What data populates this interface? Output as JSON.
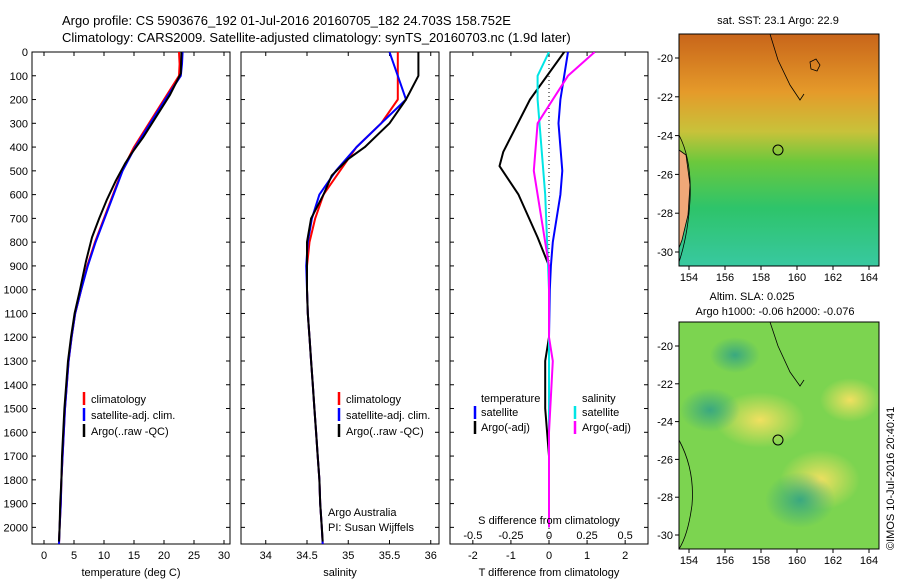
{
  "header": {
    "line1": "Argo profile: CS 5903676_192 01-Jul-2016 20160705_182 24.703S 158.752E",
    "line2": "Climatology: CARS2009. Satellite-adjusted climatology: synTS_20160703.nc (1.9d later)"
  },
  "colors": {
    "climatology": "#ff0000",
    "satellite": "#0000ff",
    "argo": "#000000",
    "sat_salinity": "#00e5e5",
    "argo_salinity": "#ff00ff"
  },
  "chart_data": [
    {
      "type": "line",
      "xlabel": "temperature (deg C)",
      "ylabel": "",
      "xlim": [
        -2,
        31
      ],
      "ylim": [
        2070,
        0
      ],
      "x_ticks": [
        0,
        5,
        10,
        15,
        20,
        25,
        30
      ],
      "y_ticks": [
        0,
        100,
        200,
        300,
        400,
        500,
        600,
        700,
        800,
        900,
        1000,
        1100,
        1200,
        1300,
        1400,
        1500,
        1600,
        1700,
        1800,
        1900,
        2000
      ],
      "legend": [
        "climatology",
        "satellite-adj. clim.",
        "Argo(..raw -QC)"
      ],
      "series": [
        {
          "name": "climatology",
          "color": "#ff0000",
          "points": [
            [
              22.5,
              0
            ],
            [
              22.6,
              50
            ],
            [
              22.5,
              100
            ],
            [
              20,
              200
            ],
            [
              17.5,
              300
            ],
            [
              15,
              400
            ],
            [
              13,
              500
            ],
            [
              11.5,
              600
            ],
            [
              10,
              700
            ],
            [
              8.5,
              800
            ],
            [
              7.2,
              900
            ],
            [
              6.2,
              1000
            ],
            [
              5.2,
              1100
            ],
            [
              4.6,
              1200
            ],
            [
              4.1,
              1300
            ],
            [
              3.8,
              1400
            ],
            [
              3.5,
              1500
            ],
            [
              3.3,
              1600
            ],
            [
              3.1,
              1700
            ],
            [
              2.9,
              1800
            ],
            [
              2.8,
              1900
            ],
            [
              2.6,
              2000
            ],
            [
              2.5,
              2070
            ]
          ]
        },
        {
          "name": "satellite-adj. clim.",
          "color": "#0000ff",
          "points": [
            [
              23.1,
              0
            ],
            [
              23.0,
              50
            ],
            [
              22.8,
              100
            ],
            [
              20.2,
              200
            ],
            [
              17.7,
              300
            ],
            [
              15.2,
              400
            ],
            [
              13.1,
              500
            ],
            [
              11.6,
              600
            ],
            [
              10.1,
              700
            ],
            [
              8.6,
              800
            ],
            [
              7.3,
              900
            ],
            [
              6.2,
              1000
            ],
            [
              5.2,
              1100
            ],
            [
              4.6,
              1200
            ],
            [
              4.1,
              1300
            ],
            [
              3.8,
              1400
            ],
            [
              3.5,
              1500
            ],
            [
              3.3,
              1600
            ],
            [
              3.1,
              1700
            ],
            [
              2.9,
              1800
            ],
            [
              2.8,
              1900
            ],
            [
              2.6,
              2000
            ],
            [
              2.5,
              2070
            ]
          ]
        },
        {
          "name": "Argo(..raw -QC)",
          "color": "#000000",
          "points": [
            [
              22.9,
              0
            ],
            [
              22.8,
              90
            ],
            [
              21,
              180
            ],
            [
              18.5,
              280
            ],
            [
              16.5,
              360
            ],
            [
              14.5,
              430
            ],
            [
              13.5,
              470
            ],
            [
              12,
              540
            ],
            [
              10.5,
              620
            ],
            [
              9.2,
              700
            ],
            [
              8,
              780
            ],
            [
              7,
              880
            ],
            [
              6,
              1000
            ],
            [
              5.1,
              1100
            ],
            [
              4.5,
              1200
            ],
            [
              4,
              1300
            ],
            [
              3.7,
              1400
            ],
            [
              3.4,
              1500
            ],
            [
              3.2,
              1600
            ],
            [
              3,
              1700
            ],
            [
              2.9,
              1800
            ],
            [
              2.7,
              1900
            ],
            [
              2.6,
              2000
            ],
            [
              2.5,
              2060
            ]
          ]
        }
      ]
    },
    {
      "type": "line",
      "xlabel": "salinity",
      "xlim": [
        33.7,
        36.1
      ],
      "ylim": [
        2070,
        0
      ],
      "x_ticks": [
        34,
        34.5,
        35,
        35.5,
        36
      ],
      "legend": [
        "climatology",
        "satellite-adj. clim.",
        "Argo(..raw -QC)"
      ],
      "annotation": [
        "Argo Australia",
        "PI: Susan Wijffels"
      ],
      "series": [
        {
          "name": "climatology",
          "color": "#ff0000",
          "points": [
            [
              35.6,
              0
            ],
            [
              35.6,
              100
            ],
            [
              35.6,
              200
            ],
            [
              35.4,
              300
            ],
            [
              35.1,
              400
            ],
            [
              34.9,
              500
            ],
            [
              34.7,
              600
            ],
            [
              34.6,
              700
            ],
            [
              34.53,
              800
            ],
            [
              34.5,
              900
            ],
            [
              34.5,
              1000
            ],
            [
              34.51,
              1100
            ],
            [
              34.53,
              1200
            ],
            [
              34.55,
              1300
            ],
            [
              34.57,
              1400
            ],
            [
              34.59,
              1500
            ],
            [
              34.61,
              1600
            ],
            [
              34.63,
              1700
            ],
            [
              34.65,
              1800
            ],
            [
              34.66,
              1900
            ],
            [
              34.68,
              2000
            ],
            [
              34.69,
              2070
            ]
          ]
        },
        {
          "name": "satellite-adj. clim.",
          "color": "#0000ff",
          "points": [
            [
              35.5,
              0
            ],
            [
              35.6,
              100
            ],
            [
              35.7,
              200
            ],
            [
              35.4,
              300
            ],
            [
              35.1,
              400
            ],
            [
              34.85,
              500
            ],
            [
              34.65,
              600
            ],
            [
              34.56,
              700
            ],
            [
              34.51,
              800
            ],
            [
              34.49,
              900
            ],
            [
              34.5,
              1000
            ],
            [
              34.51,
              1100
            ],
            [
              34.53,
              1200
            ],
            [
              34.55,
              1300
            ],
            [
              34.57,
              1400
            ],
            [
              34.59,
              1500
            ],
            [
              34.61,
              1600
            ],
            [
              34.63,
              1700
            ],
            [
              34.65,
              1800
            ],
            [
              34.66,
              1900
            ],
            [
              34.68,
              2000
            ],
            [
              34.69,
              2070
            ]
          ]
        },
        {
          "name": "Argo(..raw -QC)",
          "color": "#000000",
          "points": [
            [
              35.85,
              0
            ],
            [
              35.85,
              100
            ],
            [
              35.7,
              200
            ],
            [
              35.5,
              300
            ],
            [
              35.2,
              400
            ],
            [
              35.0,
              450
            ],
            [
              34.8,
              520
            ],
            [
              34.7,
              600
            ],
            [
              34.55,
              700
            ],
            [
              34.5,
              800
            ],
            [
              34.5,
              900
            ],
            [
              34.5,
              1000
            ],
            [
              34.51,
              1100
            ],
            [
              34.53,
              1200
            ],
            [
              34.55,
              1300
            ],
            [
              34.57,
              1400
            ],
            [
              34.59,
              1500
            ],
            [
              34.61,
              1600
            ],
            [
              34.63,
              1700
            ],
            [
              34.65,
              1800
            ],
            [
              34.66,
              1900
            ],
            [
              34.68,
              2000
            ],
            [
              34.69,
              2060
            ]
          ]
        }
      ]
    },
    {
      "type": "line",
      "xlabel": "T difference from climatology",
      "xlabel_top": "S difference from climatology",
      "xlim": [
        -2.6,
        2.6
      ],
      "ylim": [
        2070,
        0
      ],
      "x_ticks": [
        -2,
        -1,
        0,
        1,
        2
      ],
      "x_ticks_s": [
        -0.5,
        -0.25,
        0,
        0.25,
        0.5
      ],
      "legend_headers": [
        "temperature",
        "salinity"
      ],
      "legend": [
        "satellite",
        "Argo(-adj)",
        "satellite",
        "Argo(-adj)"
      ],
      "series": [
        {
          "name": "satellite",
          "quantity": "temperature",
          "color": "#0000ff",
          "points": [
            [
              0.5,
              0
            ],
            [
              0.4,
              100
            ],
            [
              0.3,
              200
            ],
            [
              0.25,
              300
            ],
            [
              0.3,
              400
            ],
            [
              0.35,
              500
            ],
            [
              0.3,
              600
            ],
            [
              0.2,
              700
            ],
            [
              0.1,
              800
            ],
            [
              0.05,
              900
            ],
            [
              0.02,
              1000
            ],
            [
              0,
              1200
            ],
            [
              0,
              1500
            ],
            [
              0,
              2000
            ]
          ]
        },
        {
          "name": "Argo(-adj)",
          "quantity": "temperature",
          "color": "#000000",
          "points": [
            [
              0.4,
              0
            ],
            [
              -0.5,
              200
            ],
            [
              -1.2,
              420
            ],
            [
              -1.3,
              480
            ],
            [
              -0.8,
              600
            ],
            [
              -0.3,
              780
            ],
            [
              0,
              900
            ],
            [
              0,
              1000
            ],
            [
              0,
              1200
            ],
            [
              -0.1,
              1300
            ],
            [
              -0.1,
              1500
            ],
            [
              0,
              1700
            ],
            [
              0,
              2000
            ]
          ]
        },
        {
          "name": "satellite",
          "quantity": "salinity",
          "color": "#00e5e5",
          "points": [
            [
              0,
              0
            ],
            [
              -0.3,
              100
            ],
            [
              -0.3,
              200
            ],
            [
              -0.2,
              400
            ],
            [
              -0.1,
              600
            ],
            [
              -0.05,
              800
            ],
            [
              0,
              1000
            ],
            [
              0,
              1500
            ],
            [
              0,
              2000
            ]
          ]
        },
        {
          "name": "Argo(-adj)",
          "quantity": "salinity",
          "color": "#ff00ff",
          "points": [
            [
              1.2,
              0
            ],
            [
              0.5,
              100
            ],
            [
              -0.3,
              300
            ],
            [
              -0.4,
              500
            ],
            [
              -0.2,
              700
            ],
            [
              0,
              900
            ],
            [
              0,
              1200
            ],
            [
              0.1,
              1300
            ],
            [
              0,
              1600
            ],
            [
              0,
              2000
            ]
          ]
        }
      ]
    },
    {
      "type": "heatmap",
      "title": "sat. SST: 23.1  Argo: 22.9",
      "x_ticks": [
        154,
        156,
        158,
        160,
        162,
        164
      ],
      "y_ticks": [
        -20,
        -22,
        -24,
        -26,
        -28,
        -30
      ]
    },
    {
      "type": "heatmap",
      "title": "Altim. SLA: 0.025",
      "subtitle": "Argo h1000: -0.06 h2000: -0.076",
      "x_ticks": [
        154,
        156,
        158,
        160,
        162,
        164
      ],
      "y_ticks": [
        -20,
        -22,
        -24,
        -26,
        -28,
        -30
      ]
    }
  ],
  "footer": {
    "credit": "©IMOS 10-Jul-2016 20:40:41"
  }
}
